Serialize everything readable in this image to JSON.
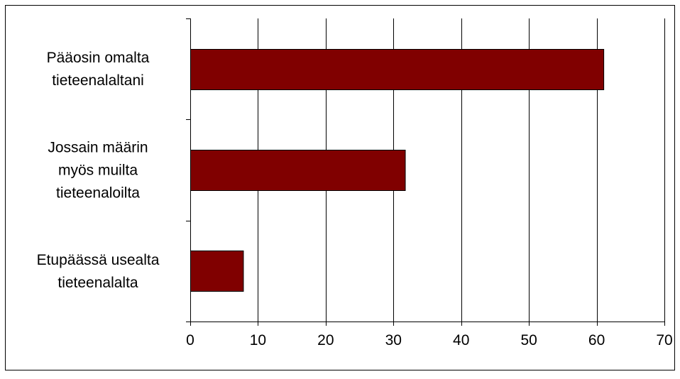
{
  "chart_data": {
    "type": "bar",
    "orientation": "horizontal",
    "title": "",
    "xlabel": "",
    "ylabel": "",
    "categories": [
      [
        "Pääosin omalta",
        "tieteenalaltani"
      ],
      [
        "Jossain määrin",
        "myös muilta",
        "tieteenaloilta"
      ],
      [
        "Etupäässä usealta",
        "tieteenalalta"
      ]
    ],
    "values": [
      61,
      31.7,
      7.8
    ],
    "xlim": [
      0,
      70
    ],
    "xticks": [
      0,
      10,
      20,
      30,
      40,
      50,
      60,
      70
    ],
    "grid": "vertical",
    "legend": "none",
    "bar_color": "#800000"
  }
}
